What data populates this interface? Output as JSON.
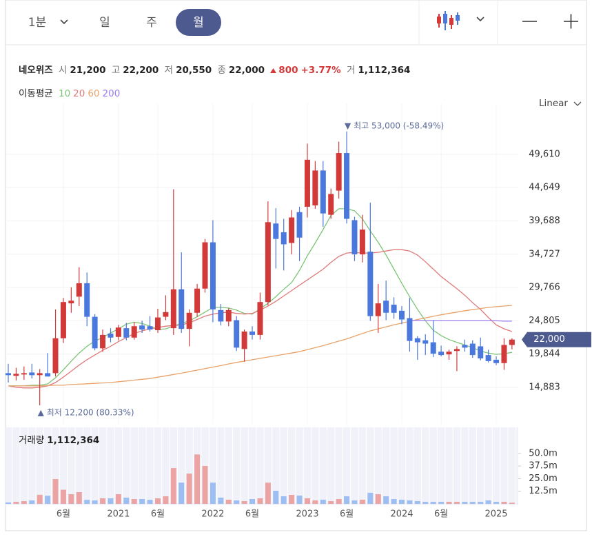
{
  "toolbar": {
    "intervals": [
      "1분",
      "일",
      "주",
      "월"
    ],
    "selected": 3
  },
  "quote": {
    "name": "네오위즈",
    "items": [
      {
        "label": "시",
        "value": "21,200"
      },
      {
        "label": "고",
        "value": "22,200"
      },
      {
        "label": "저",
        "value": "20,550"
      },
      {
        "label": "종",
        "value": "22,000"
      }
    ],
    "change": "800",
    "change_pct": "+3.77%",
    "volume_label": "거",
    "volume": "1,112,364"
  },
  "chart_data": [
    {
      "type": "candlestick",
      "scale_label": "Linear",
      "log_scale": false,
      "grid": true,
      "up_color": "#d23a3a",
      "down_color": "#4a78dc",
      "categories": [
        null,
        null,
        null,
        null,
        null,
        null,
        null,
        "6월",
        null,
        null,
        null,
        null,
        null,
        null,
        "2021",
        null,
        null,
        null,
        null,
        "6월",
        null,
        null,
        null,
        null,
        null,
        null,
        "2022",
        null,
        null,
        null,
        null,
        "6월",
        null,
        null,
        null,
        null,
        null,
        null,
        "2023",
        null,
        null,
        null,
        null,
        "6월",
        null,
        null,
        null,
        null,
        null,
        null,
        "2024",
        null,
        null,
        null,
        null,
        "6월",
        null,
        null,
        null,
        null,
        null,
        null,
        "2025",
        null,
        null
      ],
      "open": [
        17000,
        16600,
        16800,
        17100,
        16700,
        17000,
        17000,
        22200,
        27400,
        28400,
        30400,
        25400,
        20700,
        22900,
        22400,
        23700,
        22300,
        24100,
        24000,
        23400,
        25400,
        23700,
        29500,
        23600,
        26000,
        29600,
        36500,
        26400,
        24700,
        24900,
        20600,
        23200,
        22700,
        27600,
        39300,
        38000,
        36400,
        41000,
        41800,
        42000,
        47200,
        40600,
        44200,
        49800,
        39800,
        34700,
        35100,
        25500,
        27800,
        27200,
        26300,
        25200,
        22200,
        21900,
        21600,
        20200,
        19800,
        20300,
        21200,
        21400,
        21000,
        19700,
        19000,
        18500,
        21200
      ],
      "high": [
        18400,
        17800,
        18000,
        18400,
        17600,
        20000,
        26500,
        28200,
        29800,
        32800,
        32000,
        25800,
        23500,
        23700,
        24200,
        24500,
        24600,
        24800,
        25500,
        26600,
        28600,
        44400,
        35000,
        26500,
        30300,
        37000,
        39800,
        27300,
        26700,
        25500,
        23500,
        24000,
        29000,
        42600,
        41600,
        40000,
        41300,
        41800,
        51200,
        48600,
        48600,
        44500,
        51500,
        53000,
        40300,
        40600,
        42400,
        30300,
        30800,
        28300,
        27000,
        28200,
        22500,
        22800,
        24900,
        21100,
        20500,
        21000,
        22000,
        21900,
        22300,
        20500,
        19500,
        22200,
        22200
      ],
      "low": [
        15600,
        15900,
        16000,
        16200,
        12200,
        16500,
        16500,
        21500,
        26000,
        27000,
        24000,
        20400,
        20200,
        21600,
        21900,
        21900,
        22000,
        23000,
        23200,
        23000,
        24900,
        22700,
        23000,
        21000,
        25400,
        29000,
        24600,
        24100,
        24000,
        20300,
        18700,
        22000,
        22000,
        27100,
        32600,
        32300,
        34700,
        33700,
        40200,
        41500,
        38800,
        40000,
        43000,
        39300,
        33700,
        33500,
        24800,
        23000,
        24900,
        25100,
        24300,
        20200,
        19000,
        19700,
        19400,
        19500,
        19000,
        17300,
        20200,
        19300,
        18900,
        18600,
        18200,
        17500,
        20550
      ],
      "close": [
        16700,
        16900,
        17000,
        16700,
        17000,
        16500,
        22200,
        27600,
        27800,
        30400,
        25400,
        20700,
        22700,
        22300,
        23800,
        22300,
        24000,
        23500,
        23500,
        25300,
        26100,
        29500,
        23600,
        26000,
        29600,
        36500,
        26500,
        24700,
        26400,
        20800,
        23200,
        22700,
        27600,
        39500,
        37000,
        36200,
        40200,
        37200,
        48800,
        47200,
        40800,
        43700,
        49800,
        40000,
        34700,
        38400,
        25500,
        27400,
        26000,
        26000,
        25000,
        21800,
        21600,
        21400,
        19900,
        19700,
        20200,
        20600,
        20800,
        19700,
        19200,
        18800,
        18500,
        21200,
        22000
      ],
      "ma_label": "이동평균",
      "series": [
        {
          "name": "10",
          "color": "#7cc576",
          "values": [
            15100,
            15100,
            15100,
            15200,
            15200,
            15400,
            16300,
            17500,
            18800,
            20000,
            21000,
            21800,
            22300,
            23000,
            23600,
            24300,
            24600,
            24400,
            24000,
            23500,
            23600,
            24000,
            24400,
            24800,
            25400,
            26100,
            26800,
            26800,
            26700,
            26400,
            25900,
            25800,
            26600,
            27400,
            28400,
            29500,
            30500,
            32300,
            34500,
            36400,
            38400,
            40500,
            41500,
            41500,
            41200,
            40000,
            38200,
            36500,
            34600,
            32500,
            30400,
            28400,
            26500,
            24800,
            23400,
            22600,
            22000,
            21600,
            21200,
            20800,
            20300,
            20000,
            19800,
            19900,
            20100
          ]
        },
        {
          "name": "20",
          "color": "#e07a7a",
          "values": [
            15100,
            14900,
            14800,
            14800,
            14900,
            15100,
            15600,
            16400,
            17300,
            18200,
            19000,
            19700,
            20400,
            21000,
            21700,
            22300,
            22900,
            23300,
            23600,
            23800,
            24000,
            24100,
            24200,
            24500,
            25000,
            25500,
            25800,
            26000,
            26100,
            25900,
            25800,
            25900,
            26400,
            27000,
            27700,
            28500,
            29300,
            30100,
            30900,
            31700,
            32500,
            33500,
            34400,
            34900,
            35000,
            34900,
            34900,
            35000,
            35200,
            35400,
            35400,
            35200,
            34600,
            33600,
            32500,
            31400,
            30500,
            29600,
            28600,
            27500,
            26500,
            25300,
            24200,
            23600,
            23200
          ]
        },
        {
          "name": "60",
          "color": "#e8a26a",
          "values": [
            15100,
            15100,
            15100,
            15100,
            15100,
            15150,
            15200,
            15200,
            15300,
            15360,
            15420,
            15480,
            15540,
            15600,
            15720,
            15840,
            15960,
            16080,
            16200,
            16400,
            16600,
            16800,
            17000,
            17220,
            17450,
            17680,
            17900,
            18130,
            18370,
            18600,
            18800,
            19000,
            19200,
            19400,
            19600,
            19800,
            20000,
            20200,
            20500,
            20800,
            21100,
            21430,
            21770,
            22100,
            22500,
            22900,
            23300,
            23600,
            23900,
            24200,
            24470,
            24730,
            25000,
            25230,
            25470,
            25700,
            25900,
            26100,
            26300,
            26470,
            26630,
            26800,
            26900,
            27000,
            27100
          ]
        },
        {
          "name": "200",
          "color": "#9a7af0",
          "values": [
            null,
            null,
            null,
            null,
            null,
            null,
            null,
            null,
            null,
            null,
            null,
            null,
            null,
            null,
            null,
            null,
            null,
            null,
            null,
            null,
            null,
            null,
            null,
            null,
            null,
            null,
            null,
            null,
            null,
            null,
            null,
            null,
            null,
            null,
            null,
            null,
            null,
            null,
            null,
            null,
            null,
            null,
            null,
            null,
            null,
            null,
            null,
            null,
            null,
            null,
            null,
            24900,
            24850,
            24800,
            24800,
            24800,
            24800,
            24800,
            24800,
            24800,
            24800,
            24800,
            24800,
            24750,
            24750
          ]
        }
      ],
      "ylim": [
        9439,
        56173
      ],
      "yticks": [
        {
          "value": 14883,
          "label": "14,883"
        },
        {
          "value": 19844,
          "label": "19,844"
        },
        {
          "value": 24805,
          "label": "24,805"
        },
        {
          "value": 29766,
          "label": "29,766"
        },
        {
          "value": 34727,
          "label": "34,727"
        },
        {
          "value": 39688,
          "label": "39,688"
        },
        {
          "value": 44649,
          "label": "44,649"
        },
        {
          "value": 49610,
          "label": "49,610"
        }
      ],
      "max_label": "▼ 최고 53,000 (-58.49%)",
      "min_label": "▲ 최저 12,200 (80.33%)",
      "last_label": "22,000"
    },
    {
      "type": "bar",
      "title": "거래량",
      "title_value": "1,112,364",
      "up_color": "#eba3a3",
      "down_color": "#9dbef2",
      "values": [
        1.4,
        2,
        2.7,
        3.4,
        9,
        8,
        24.6,
        14,
        9.6,
        11.6,
        4,
        3.4,
        5.5,
        5.5,
        9.6,
        6.2,
        4.8,
        4.8,
        4,
        5.5,
        7.5,
        35.5,
        21,
        30,
        49,
        37.6,
        21,
        6.2,
        4.1,
        3.4,
        2.7,
        4.8,
        5.5,
        21,
        13,
        7.5,
        8.9,
        8.2,
        5.5,
        3.4,
        4.1,
        2.7,
        4.8,
        7.5,
        3.4,
        4.1,
        11,
        9.6,
        7.5,
        4.8,
        4.1,
        3.4,
        2.7,
        2,
        2,
        2,
        2,
        2,
        2,
        2,
        2,
        3.4,
        2,
        2,
        1.11
      ],
      "ylim": [
        0,
        74.5
      ],
      "yticks": [
        {
          "value": 12.5,
          "label": "12.5m"
        },
        {
          "value": 25,
          "label": "25.0m"
        },
        {
          "value": 37.5,
          "label": "37.5m"
        },
        {
          "value": 50,
          "label": "50.0m"
        }
      ]
    }
  ]
}
